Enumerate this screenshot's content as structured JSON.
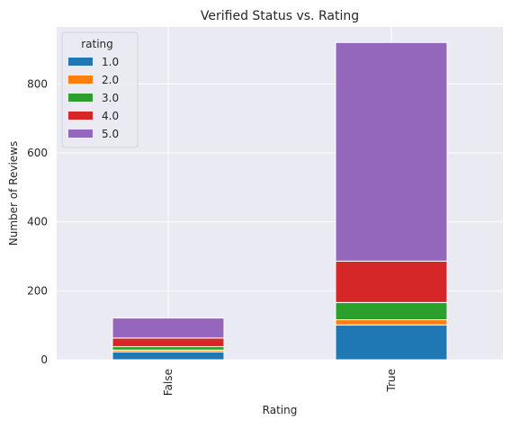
{
  "chart_data": {
    "type": "bar",
    "stacked": true,
    "title": "Verified Status vs. Rating",
    "xlabel": "Rating",
    "ylabel": "Number of Reviews",
    "categories": [
      "False",
      "True"
    ],
    "ylim": [
      0,
      965
    ],
    "yticks": [
      0,
      200,
      400,
      600,
      800
    ],
    "grid": true,
    "legend": {
      "title": "rating",
      "placement": "top-left"
    },
    "series": [
      {
        "name": "1.0",
        "color": "#1f77b4",
        "values": [
          23,
          101
        ]
      },
      {
        "name": "2.0",
        "color": "#ff7f0e",
        "values": [
          5,
          15
        ]
      },
      {
        "name": "3.0",
        "color": "#2ca02c",
        "values": [
          10,
          50
        ]
      },
      {
        "name": "4.0",
        "color": "#d62728",
        "values": [
          25,
          120
        ]
      },
      {
        "name": "5.0",
        "color": "#9467bd",
        "values": [
          58,
          634
        ]
      }
    ]
  }
}
